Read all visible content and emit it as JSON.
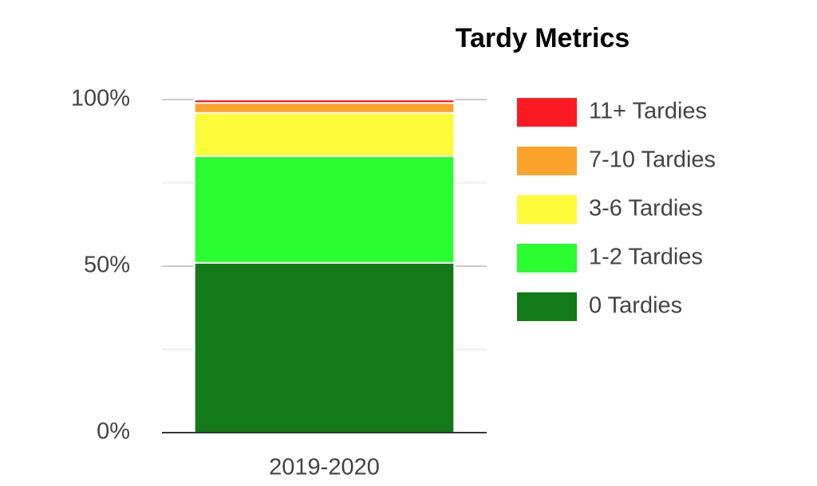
{
  "chart_data": {
    "type": "stacked_bar",
    "title": "Tardy Metrics",
    "categories": [
      "2019-2020"
    ],
    "series": [
      {
        "name": "0 Tardies",
        "color": "#127a16",
        "values": [
          51
        ]
      },
      {
        "name": "1-2 Tardies",
        "color": "#29fc2f",
        "values": [
          32
        ]
      },
      {
        "name": "3-6 Tardies",
        "color": "#fdfb3a",
        "values": [
          13
        ]
      },
      {
        "name": "7-10 Tardies",
        "color": "#fda32c",
        "values": [
          3
        ]
      },
      {
        "name": "11+ Tardies",
        "color": "#fc1a22",
        "values": [
          1
        ]
      }
    ],
    "ylim": [
      0,
      100
    ],
    "yticks": [
      {
        "value": 0,
        "label": "0%"
      },
      {
        "value": 50,
        "label": "50%"
      },
      {
        "value": 100,
        "label": "100%"
      }
    ],
    "minor_yticks": [
      25,
      75
    ],
    "grid": true,
    "legend": "right"
  }
}
